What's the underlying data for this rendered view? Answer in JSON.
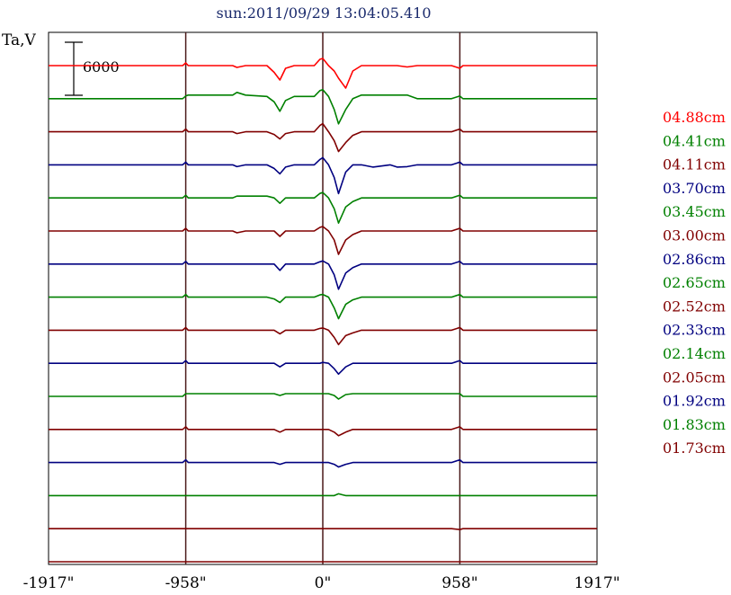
{
  "chart_data": {
    "type": "line",
    "title": "sun:2011/09/29 13:04:05.410",
    "ylabel": "Ta,V",
    "scale_bar_label": "6000",
    "scale_bar_value": 6000,
    "xlim": [
      -1917,
      1917
    ],
    "x_ticks": [
      {
        "value": -1917,
        "label": "-1917\""
      },
      {
        "value": -958,
        "label": "-958\""
      },
      {
        "value": 0,
        "label": "0\""
      },
      {
        "value": 958,
        "label": "958\""
      },
      {
        "value": 1917,
        "label": "1917\""
      }
    ],
    "vertical_gridlines": [
      -958,
      0,
      958
    ],
    "grid": false,
    "legend_position": "right",
    "series": [
      {
        "label": "04.88cm",
        "color": "#ff0000"
      },
      {
        "label": "04.41cm",
        "color": "#008000"
      },
      {
        "label": "04.11cm",
        "color": "#800000"
      },
      {
        "label": "03.70cm",
        "color": "#000080"
      },
      {
        "label": "03.45cm",
        "color": "#008000"
      },
      {
        "label": "03.00cm",
        "color": "#800000"
      },
      {
        "label": "02.86cm",
        "color": "#000080"
      },
      {
        "label": "02.65cm",
        "color": "#008000"
      },
      {
        "label": "02.52cm",
        "color": "#800000"
      },
      {
        "label": "02.33cm",
        "color": "#000080"
      },
      {
        "label": "02.14cm",
        "color": "#008000"
      },
      {
        "label": "02.05cm",
        "color": "#800000"
      },
      {
        "label": "01.92cm",
        "color": "#000080"
      },
      {
        "label": "01.83cm",
        "color": "#008000"
      },
      {
        "label": "01.73cm",
        "color": "#800000"
      }
    ],
    "profile_x": [
      -1917,
      -980,
      -958,
      -940,
      -630,
      -600,
      -540,
      -390,
      -340,
      -300,
      -260,
      -200,
      -60,
      -20,
      0,
      40,
      80,
      110,
      160,
      210,
      270,
      350,
      470,
      520,
      590,
      660,
      900,
      958,
      980,
      1917
    ],
    "profiles": [
      [
        0,
        0,
        3.0,
        0,
        0,
        -2.0,
        0,
        0,
        -7.5,
        -16,
        -3.0,
        0,
        0,
        7.0,
        8.0,
        0,
        -6,
        -14,
        -25,
        -6,
        0,
        0,
        0,
        0,
        -1.5,
        0,
        0,
        -3.0,
        0,
        0
      ],
      [
        0,
        0,
        3.0,
        4.0,
        4.0,
        7.0,
        4.0,
        2.5,
        -3.5,
        -14,
        -2.0,
        2.5,
        2.5,
        9.0,
        10.0,
        2.5,
        -12,
        -28,
        -12,
        0,
        4.0,
        4.0,
        4.0,
        4.0,
        4.0,
        0,
        0,
        3.0,
        0,
        0
      ],
      [
        0,
        0,
        3.0,
        0,
        0,
        -2.0,
        0,
        0,
        -3.0,
        -8,
        -2.0,
        0,
        0,
        7.0,
        9.0,
        0,
        -10,
        -22,
        -12,
        -4,
        0,
        0,
        0,
        0,
        0,
        0,
        0,
        3.0,
        0,
        0
      ],
      [
        0,
        0,
        3.0,
        0,
        0,
        -2.0,
        0,
        0,
        -4.0,
        -10,
        -2.5,
        0,
        0,
        6.0,
        8.0,
        0,
        -14,
        -32,
        -8,
        0,
        0,
        -2.5,
        0,
        -2.5,
        -2.0,
        0,
        0,
        3.0,
        0,
        0
      ],
      [
        0,
        0,
        3.0,
        0,
        0,
        2.0,
        2.0,
        2.0,
        0,
        -6,
        0,
        0,
        0,
        5.0,
        6.0,
        0,
        -12,
        -28,
        -10,
        -4,
        0,
        0,
        0,
        0,
        0,
        0,
        0,
        3.0,
        0,
        0
      ],
      [
        0,
        0,
        3.0,
        0,
        0,
        -2.0,
        0,
        0,
        0,
        -6,
        0,
        0,
        0,
        4.0,
        5.0,
        0,
        -10,
        -26,
        -10,
        -4,
        0,
        0,
        0,
        0,
        0,
        0,
        0,
        3.0,
        0,
        0
      ],
      [
        0,
        0,
        3.0,
        0,
        0,
        0,
        0,
        0,
        0,
        -7,
        0,
        0,
        0,
        2.5,
        3.5,
        0,
        -12,
        -28,
        -10,
        -4,
        0,
        0,
        0,
        0,
        0,
        0,
        0,
        3.0,
        0,
        0
      ],
      [
        0,
        0,
        3.0,
        0,
        0,
        0,
        0,
        0,
        -2.0,
        -6,
        0,
        0,
        0,
        2.5,
        3.0,
        0,
        -12,
        -24,
        -8,
        -3,
        0,
        0,
        0,
        0,
        0,
        0,
        0,
        3.0,
        0,
        0
      ],
      [
        0,
        0,
        3.0,
        0,
        0,
        0,
        0,
        0,
        0,
        -4,
        0,
        0,
        0,
        2.0,
        2.5,
        0,
        -8,
        -16,
        -6,
        -3,
        0,
        0,
        0,
        0,
        0,
        0,
        0,
        3.0,
        0,
        0
      ],
      [
        0,
        0,
        3.0,
        0,
        0,
        0,
        0,
        0,
        0,
        -4,
        0,
        0,
        0,
        0,
        1.0,
        0,
        -6,
        -12,
        -4,
        0,
        0,
        0,
        0,
        0,
        0,
        0,
        0,
        3.0,
        0,
        0
      ],
      [
        0,
        0,
        3.0,
        3.0,
        3.0,
        3.0,
        3.0,
        3.0,
        3.0,
        1.0,
        3.0,
        3.0,
        3.0,
        3.0,
        3.0,
        3.0,
        1.0,
        -3.0,
        2.0,
        3.0,
        3.0,
        3.0,
        3.0,
        3.0,
        3.0,
        3.0,
        3.0,
        3.0,
        0,
        0
      ],
      [
        0,
        0,
        3.0,
        0,
        0,
        0,
        0,
        0,
        0,
        -3,
        0,
        0,
        0,
        0,
        0,
        0,
        -3,
        -7,
        -3,
        0,
        0,
        0,
        0,
        0,
        0,
        0,
        0,
        3.0,
        0,
        0
      ],
      [
        0,
        0,
        3.0,
        0,
        0,
        0,
        0,
        0,
        0,
        -2,
        0,
        0,
        0,
        0,
        0,
        0,
        -2,
        -5,
        -2,
        0,
        0,
        0,
        0,
        0,
        0,
        0,
        0,
        3.0,
        0,
        0
      ],
      [
        0,
        0,
        0,
        0,
        0,
        0,
        0,
        0,
        0,
        0,
        0,
        0,
        0,
        0,
        0,
        0,
        0,
        2.0,
        0,
        0,
        0,
        0,
        0,
        0,
        0,
        0,
        0,
        0,
        0,
        0
      ],
      [
        0,
        0,
        0,
        0,
        0,
        0,
        0,
        0,
        0,
        0,
        0,
        0,
        0,
        0,
        0,
        0,
        0,
        0,
        0,
        0,
        0,
        0,
        0,
        0,
        0,
        0,
        0,
        -1.0,
        0,
        0
      ]
    ]
  }
}
